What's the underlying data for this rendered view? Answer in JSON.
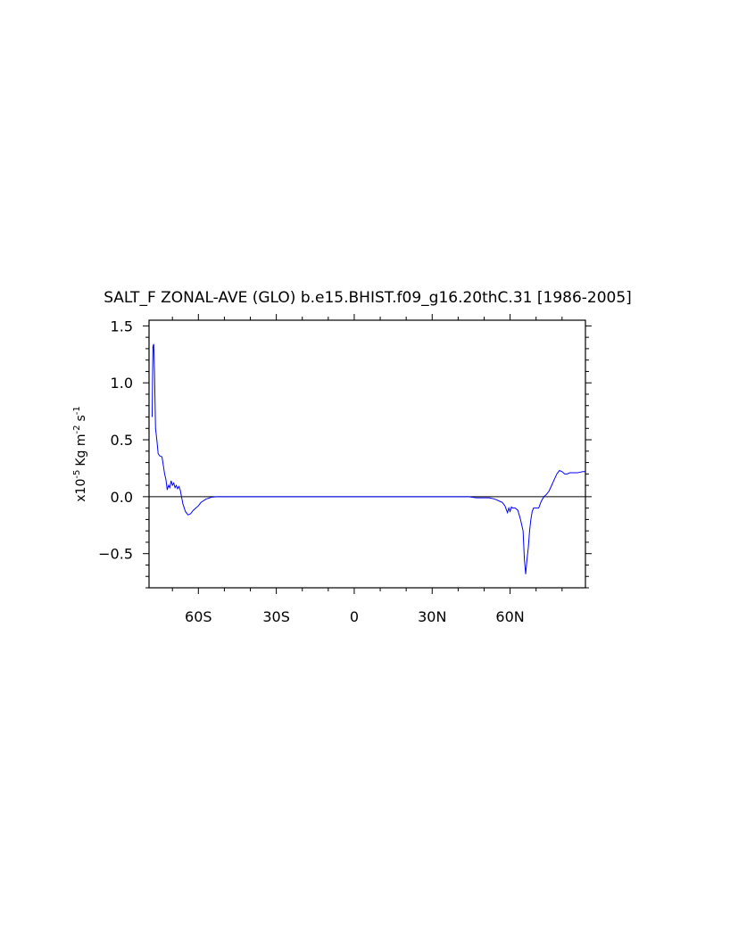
{
  "chart_data": {
    "type": "line",
    "title": "SALT_F ZONAL-AVE (GLO) b.e15.BHIST.f09_g16.20thC.31 [1986-2005]",
    "ylabel": {
      "prefix": "x10",
      "exp": "-5",
      "unit1": "Kg m",
      "exp2": "-2",
      "unit2": "s",
      "exp3": "-1"
    },
    "xlim": [
      -79,
      89
    ],
    "ylim": [
      -0.8,
      1.55
    ],
    "xticks": [
      {
        "value": -60,
        "label": "60S"
      },
      {
        "value": -30,
        "label": "30S"
      },
      {
        "value": 0,
        "label": "0"
      },
      {
        "value": 30,
        "label": "30N"
      },
      {
        "value": 60,
        "label": "60N"
      }
    ],
    "yticks": [
      {
        "value": 1.5,
        "label": "1.5"
      },
      {
        "value": 1.0,
        "label": "1.0"
      },
      {
        "value": 0.5,
        "label": "0.5"
      },
      {
        "value": 0.0,
        "label": "0.0"
      },
      {
        "value": -0.5,
        "label": "−0.5"
      }
    ],
    "reference_line": 0,
    "series": [
      {
        "color": "#0000ff",
        "x": [
          -77.8,
          -77.5,
          -77.2,
          -76.9,
          -76.5,
          -76.0,
          -75.5,
          -75.0,
          -74.0,
          -73.0,
          -72.5,
          -72.0,
          -71.5,
          -71.0,
          -70.5,
          -70.0,
          -69.5,
          -69.0,
          -68.5,
          -68.0,
          -67.5,
          -67.0,
          -66.0,
          -65.0,
          -64.0,
          -63.0,
          -62.0,
          -61.0,
          -60.0,
          -59.0,
          -57.0,
          -55.0,
          -53.0,
          -51.0,
          -49.0,
          -45.0,
          -40.0,
          -30.0,
          -20.0,
          -10.0,
          0.0,
          10.0,
          20.0,
          30.0,
          35.0,
          40.0,
          44.0,
          47.0,
          50.0,
          52.0,
          54.0,
          55.0,
          56.0,
          57.0,
          58.0,
          59.0,
          59.5,
          60.0,
          60.5,
          61.0,
          62.0,
          63.0,
          64.0,
          65.0,
          65.5,
          66.0,
          66.5,
          67.0,
          67.5,
          68.0,
          68.5,
          69.0,
          70.0,
          71.0,
          71.5,
          72.0,
          73.0,
          74.0,
          75.0,
          76.0,
          77.0,
          78.0,
          79.0,
          80.0,
          81.0,
          82.0,
          83.0,
          84.0,
          86.0,
          88.0,
          89.0
        ],
        "y": [
          0.7,
          1.32,
          1.34,
          1.1,
          0.6,
          0.5,
          0.38,
          0.36,
          0.35,
          0.2,
          0.15,
          0.06,
          0.1,
          0.08,
          0.14,
          0.1,
          0.12,
          0.08,
          0.1,
          0.07,
          0.09,
          0.06,
          -0.06,
          -0.13,
          -0.16,
          -0.15,
          -0.12,
          -0.1,
          -0.08,
          -0.05,
          -0.02,
          -0.005,
          0.0,
          0.0,
          0.0,
          0.0,
          0.0,
          0.0,
          0.0,
          0.0,
          0.0,
          0.0,
          0.0,
          0.0,
          0.0,
          0.0,
          0.0,
          -0.01,
          -0.01,
          -0.01,
          -0.02,
          -0.03,
          -0.04,
          -0.05,
          -0.08,
          -0.14,
          -0.1,
          -0.13,
          -0.09,
          -0.1,
          -0.1,
          -0.12,
          -0.2,
          -0.3,
          -0.55,
          -0.68,
          -0.55,
          -0.45,
          -0.3,
          -0.2,
          -0.13,
          -0.1,
          -0.1,
          -0.1,
          -0.07,
          -0.04,
          0.0,
          0.02,
          0.05,
          0.1,
          0.15,
          0.2,
          0.23,
          0.22,
          0.2,
          0.2,
          0.21,
          0.21,
          0.21,
          0.22,
          0.22
        ]
      }
    ]
  }
}
